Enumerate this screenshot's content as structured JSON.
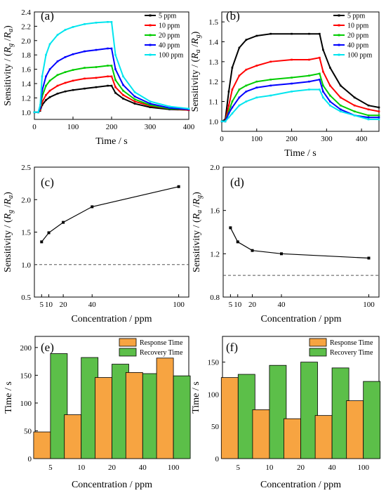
{
  "chart_data": [
    {
      "panel": "(a)",
      "type": "line",
      "xlabel": "Time / s",
      "ylabel": "Sensitivity /  (Rg /Ra)",
      "xlim": [
        0,
        400
      ],
      "ylim": [
        0.9,
        2.4
      ],
      "xticks": [
        0,
        100,
        200,
        300,
        400
      ],
      "yticks": [
        1.0,
        1.2,
        1.4,
        1.6,
        1.8,
        2.0,
        2.2,
        2.4
      ],
      "legend_position": "top-right",
      "series": [
        {
          "name": "5 ppm",
          "color": "#000000",
          "x": [
            0,
            10,
            15,
            20,
            30,
            40,
            60,
            80,
            100,
            130,
            160,
            190,
            200,
            210,
            230,
            260,
            300,
            350,
            400
          ],
          "y": [
            1.0,
            1.0,
            1.02,
            1.1,
            1.17,
            1.21,
            1.26,
            1.29,
            1.31,
            1.33,
            1.35,
            1.37,
            1.37,
            1.27,
            1.19,
            1.12,
            1.07,
            1.04,
            1.03
          ]
        },
        {
          "name": "10 ppm",
          "color": "#ff0000",
          "x": [
            0,
            10,
            15,
            20,
            30,
            40,
            60,
            80,
            100,
            130,
            160,
            190,
            200,
            210,
            230,
            260,
            300,
            350,
            400
          ],
          "y": [
            1.0,
            1.0,
            1.03,
            1.14,
            1.24,
            1.3,
            1.37,
            1.41,
            1.44,
            1.47,
            1.48,
            1.5,
            1.5,
            1.35,
            1.24,
            1.15,
            1.09,
            1.05,
            1.03
          ]
        },
        {
          "name": "20 ppm",
          "color": "#00cc00",
          "x": [
            0,
            10,
            15,
            20,
            30,
            40,
            60,
            80,
            100,
            130,
            160,
            190,
            200,
            210,
            230,
            260,
            300,
            350,
            400
          ],
          "y": [
            1.0,
            1.0,
            1.05,
            1.22,
            1.37,
            1.44,
            1.52,
            1.56,
            1.59,
            1.62,
            1.63,
            1.65,
            1.65,
            1.45,
            1.3,
            1.18,
            1.1,
            1.05,
            1.04
          ]
        },
        {
          "name": "40 ppm",
          "color": "#0000ff",
          "x": [
            0,
            10,
            15,
            20,
            30,
            40,
            60,
            80,
            100,
            130,
            160,
            190,
            200,
            210,
            230,
            260,
            300,
            350,
            400
          ],
          "y": [
            1.0,
            1.0,
            1.06,
            1.3,
            1.5,
            1.6,
            1.71,
            1.77,
            1.81,
            1.85,
            1.87,
            1.89,
            1.89,
            1.6,
            1.38,
            1.22,
            1.12,
            1.06,
            1.04
          ]
        },
        {
          "name": "100 ppm",
          "color": "#00e5ee",
          "x": [
            0,
            10,
            15,
            20,
            30,
            40,
            60,
            80,
            100,
            130,
            160,
            190,
            200,
            210,
            230,
            260,
            300,
            350,
            400
          ],
          "y": [
            1.0,
            1.0,
            1.1,
            1.5,
            1.8,
            1.95,
            2.08,
            2.15,
            2.19,
            2.23,
            2.25,
            2.26,
            2.26,
            1.8,
            1.5,
            1.28,
            1.15,
            1.08,
            1.05
          ]
        }
      ]
    },
    {
      "panel": "(b)",
      "type": "line",
      "xlabel": "Time / s",
      "ylabel": "Sensitivity /  (Ra /Rg)",
      "xlim": [
        0,
        450
      ],
      "ylim": [
        0.95,
        1.55
      ],
      "xticks": [
        0,
        100,
        200,
        300,
        400
      ],
      "yticks": [
        1.0,
        1.1,
        1.2,
        1.3,
        1.4,
        1.5
      ],
      "legend_position": "top-right",
      "series": [
        {
          "name": "5 ppm",
          "color": "#000000",
          "x": [
            0,
            10,
            20,
            30,
            50,
            70,
            100,
            140,
            200,
            250,
            280,
            290,
            310,
            340,
            380,
            420,
            450
          ],
          "y": [
            1.0,
            1.01,
            1.15,
            1.27,
            1.37,
            1.41,
            1.43,
            1.44,
            1.44,
            1.44,
            1.44,
            1.36,
            1.27,
            1.18,
            1.12,
            1.08,
            1.07
          ]
        },
        {
          "name": "10 ppm",
          "color": "#ff0000",
          "x": [
            0,
            10,
            20,
            30,
            50,
            70,
            100,
            140,
            200,
            250,
            280,
            290,
            310,
            340,
            380,
            420,
            450
          ],
          "y": [
            1.0,
            1.0,
            1.08,
            1.16,
            1.23,
            1.26,
            1.28,
            1.3,
            1.31,
            1.31,
            1.32,
            1.25,
            1.18,
            1.12,
            1.08,
            1.06,
            1.05
          ]
        },
        {
          "name": "20 ppm",
          "color": "#00cc00",
          "x": [
            0,
            10,
            20,
            30,
            50,
            70,
            100,
            140,
            200,
            250,
            280,
            290,
            310,
            340,
            380,
            420,
            450
          ],
          "y": [
            1.0,
            1.0,
            1.05,
            1.1,
            1.16,
            1.18,
            1.2,
            1.21,
            1.22,
            1.23,
            1.24,
            1.18,
            1.13,
            1.08,
            1.05,
            1.03,
            1.03
          ]
        },
        {
          "name": "40 ppm",
          "color": "#0000ff",
          "x": [
            0,
            10,
            20,
            30,
            50,
            70,
            100,
            140,
            200,
            250,
            280,
            290,
            310,
            340,
            380,
            420,
            450
          ],
          "y": [
            1.0,
            1.0,
            1.04,
            1.07,
            1.12,
            1.15,
            1.17,
            1.18,
            1.19,
            1.2,
            1.21,
            1.15,
            1.1,
            1.06,
            1.03,
            1.02,
            1.02
          ]
        },
        {
          "name": "100 ppm",
          "color": "#00e5ee",
          "x": [
            0,
            10,
            20,
            30,
            50,
            70,
            100,
            140,
            200,
            250,
            280,
            290,
            310,
            340,
            380,
            420,
            450
          ],
          "y": [
            1.0,
            1.0,
            1.02,
            1.04,
            1.08,
            1.1,
            1.12,
            1.13,
            1.15,
            1.16,
            1.16,
            1.12,
            1.08,
            1.05,
            1.03,
            1.01,
            1.01
          ]
        }
      ]
    },
    {
      "panel": "(c)",
      "type": "line",
      "xlabel": "Concentration / ppm",
      "ylabel": "Sensitivity /  (Rg /Ra)",
      "xlim": [
        0,
        107
      ],
      "ylim": [
        0.5,
        2.5
      ],
      "xticks": [
        5,
        10,
        20,
        40,
        100
      ],
      "yticks": [
        0.5,
        1.0,
        1.5,
        2.0,
        2.5
      ],
      "reference_line": 1.0,
      "series": [
        {
          "x": [
            5,
            10,
            20,
            40,
            100
          ],
          "y": [
            1.35,
            1.49,
            1.65,
            1.89,
            2.2
          ],
          "color": "#000000"
        }
      ]
    },
    {
      "panel": "(d)",
      "type": "line",
      "xlabel": "Concentration / ppm",
      "ylabel": "Sensitivity /  (Ra /Rg)",
      "xlim": [
        0,
        107
      ],
      "ylim": [
        0.8,
        2.0
      ],
      "xticks": [
        5,
        10,
        20,
        40,
        100
      ],
      "yticks": [
        0.8,
        1.2,
        1.6,
        2.0
      ],
      "reference_line": 1.0,
      "series": [
        {
          "x": [
            5,
            10,
            20,
            40,
            100
          ],
          "y": [
            1.44,
            1.31,
            1.23,
            1.2,
            1.16
          ],
          "color": "#000000"
        }
      ]
    },
    {
      "panel": "(e)",
      "type": "bar",
      "xlabel": "Concentration / ppm",
      "ylabel": "Time / s",
      "ylim": [
        0,
        220
      ],
      "yticks": [
        0,
        50,
        100,
        150,
        200
      ],
      "categories": [
        "5",
        "10",
        "20",
        "40",
        "100"
      ],
      "legend_position": "top-right",
      "series": [
        {
          "name": "Response Time",
          "color": "#f7a441",
          "values": [
            48,
            79,
            146,
            155,
            181
          ]
        },
        {
          "name": "Recovery Time",
          "color": "#5cbf49",
          "values": [
            189,
            182,
            170,
            153,
            149
          ]
        }
      ]
    },
    {
      "panel": "(f)",
      "type": "bar",
      "xlabel": "Concentration / ppm",
      "ylabel": "Time / s",
      "ylim": [
        0,
        190
      ],
      "yticks": [
        0,
        50,
        100,
        150
      ],
      "categories": [
        "5",
        "10",
        "20",
        "40",
        "100"
      ],
      "legend_position": "top-right",
      "series": [
        {
          "name": "Response Time",
          "color": "#f7a441",
          "values": [
            126,
            76,
            62,
            67,
            90
          ]
        },
        {
          "name": "Recovery Time",
          "color": "#5cbf49",
          "values": [
            131,
            145,
            150,
            141,
            120
          ]
        }
      ]
    }
  ]
}
